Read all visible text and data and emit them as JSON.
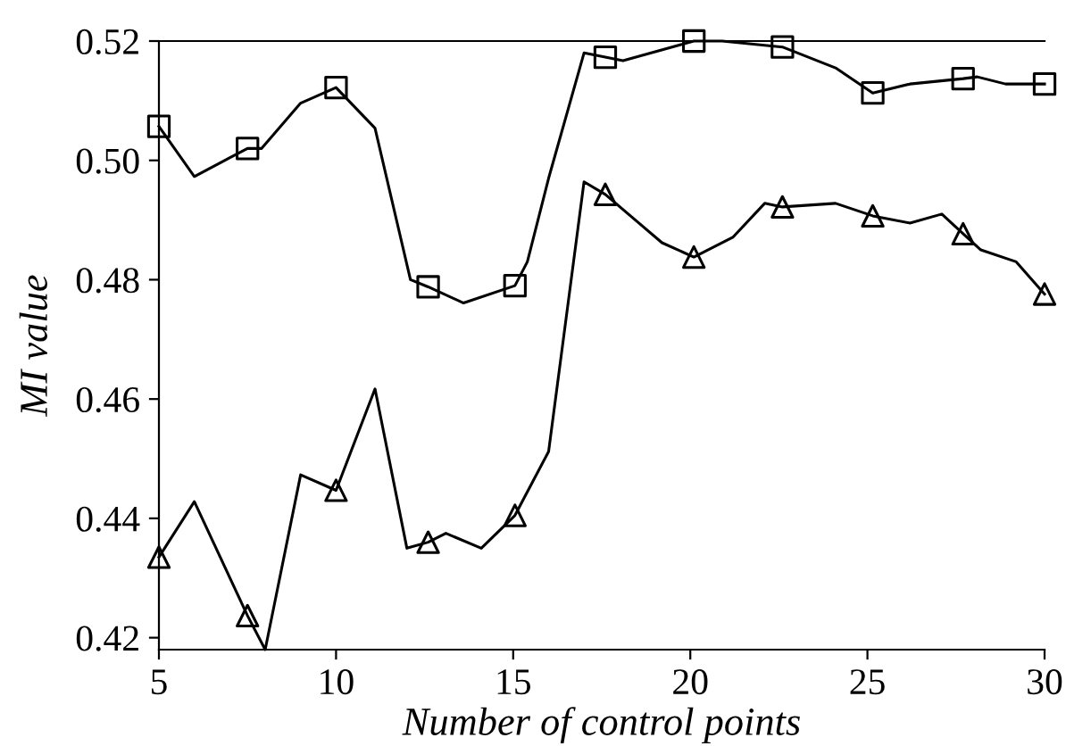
{
  "chart_data": {
    "type": "line",
    "xlabel": "Number of control points",
    "ylabel": "MI value",
    "xlim": [
      5,
      30
    ],
    "xticks": [
      5,
      10,
      15,
      20,
      25,
      30
    ],
    "ylim": [
      0.418,
      0.52
    ],
    "yticks": [
      {
        "value": 0.42,
        "label": "0.42"
      },
      {
        "value": 0.44,
        "label": "0.44"
      },
      {
        "value": 0.46,
        "label": "0.46"
      },
      {
        "value": 0.48,
        "label": "0.48"
      },
      {
        "value": 0.5,
        "label": "0.50"
      },
      {
        "value": 0.52,
        "label": "0.52"
      }
    ],
    "grid": false,
    "legend": false,
    "line_style": "solid",
    "series": [
      {
        "color": "#000000",
        "marker": "none",
        "x": [
          5,
          6,
          7.5,
          7.9,
          9,
          10,
          11.1,
          12.1,
          12.6,
          13.6,
          15.05,
          15.4,
          16,
          17,
          17.6,
          18.1,
          20.1,
          20.9,
          22.6,
          24.1,
          25.15,
          26.2,
          27.7,
          28.1,
          28.9,
          30
        ],
        "values": [
          0.5057,
          0.4973,
          0.502,
          0.502,
          0.5096,
          0.5122,
          0.5054,
          0.48,
          0.4788,
          0.4761,
          0.479,
          0.483,
          0.497,
          0.518,
          0.5173,
          0.5167,
          0.52,
          0.52,
          0.519,
          0.5155,
          0.5113,
          0.5128,
          0.5137,
          0.514,
          0.5128,
          0.5128
        ]
      },
      {
        "type": "scatter",
        "color": "#000000",
        "marker": "square",
        "x": [
          5,
          7.5,
          10,
          12.6,
          15.05,
          17.6,
          20.1,
          22.6,
          25.15,
          27.7,
          30
        ],
        "values": [
          0.5057,
          0.502,
          0.5122,
          0.4788,
          0.479,
          0.5173,
          0.52,
          0.519,
          0.5113,
          0.5137,
          0.5128
        ]
      },
      {
        "color": "#000000",
        "marker": "none",
        "x": [
          5,
          6,
          7.5,
          8,
          9,
          10,
          11.1,
          12,
          12.6,
          13.1,
          14.1,
          15.05,
          16,
          17,
          17.6,
          19.2,
          20.1,
          21.2,
          22.1,
          22.6,
          24.1,
          25.15,
          26.2,
          27.1,
          27.7,
          28.2,
          29.2,
          30
        ],
        "values": [
          0.4335,
          0.4428,
          0.4237,
          0.418,
          0.4473,
          0.4447,
          0.4617,
          0.435,
          0.436,
          0.4375,
          0.435,
          0.4405,
          0.4512,
          0.4964,
          0.4943,
          0.4862,
          0.4838,
          0.4871,
          0.4928,
          0.4922,
          0.4928,
          0.4907,
          0.4895,
          0.491,
          0.4877,
          0.485,
          0.483,
          0.4776
        ]
      },
      {
        "type": "scatter",
        "color": "#000000",
        "marker": "triangle",
        "x": [
          5,
          7.5,
          10,
          12.6,
          15.05,
          17.6,
          20.1,
          22.6,
          25.15,
          27.7,
          30
        ],
        "values": [
          0.4335,
          0.4237,
          0.4447,
          0.436,
          0.4405,
          0.4943,
          0.4838,
          0.4922,
          0.4907,
          0.4877,
          0.4776
        ]
      }
    ]
  }
}
